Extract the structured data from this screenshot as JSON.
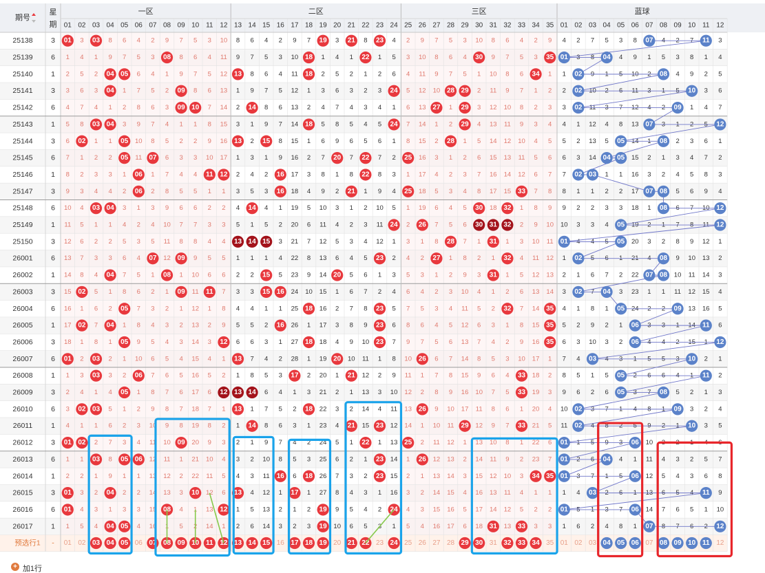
{
  "chart_data": {
    "type": "table",
    "header": {
      "issue_label": "期号",
      "week_label": "星期",
      "zones": [
        "一区",
        "二区",
        "三区",
        "蓝球"
      ],
      "red_columns": [
        "01",
        "02",
        "03",
        "04",
        "05",
        "06",
        "07",
        "08",
        "09",
        "10",
        "11",
        "12",
        "13",
        "14",
        "15",
        "16",
        "17",
        "18",
        "19",
        "20",
        "21",
        "22",
        "23",
        "24",
        "25",
        "26",
        "27",
        "28",
        "29",
        "30",
        "31",
        "32",
        "33",
        "34",
        "35"
      ],
      "blue_columns": [
        "01",
        "02",
        "03",
        "04",
        "05",
        "06",
        "07",
        "08",
        "09",
        "10",
        "11",
        "12"
      ]
    },
    "rows": [
      {
        "issue": "25138",
        "week": "3",
        "reds": [
          "01",
          "03",
          "19",
          "21",
          "23"
        ],
        "blues": [
          "07",
          "11"
        ]
      },
      {
        "issue": "25139",
        "week": "6",
        "reds": [
          "08",
          "18",
          "22",
          "30",
          "35"
        ],
        "blues": [
          "01",
          "04"
        ]
      },
      {
        "issue": "25140",
        "week": "1",
        "reds": [
          "04",
          "05",
          "13",
          "18",
          "34"
        ],
        "blues": [
          "02",
          "08"
        ]
      },
      {
        "issue": "25141",
        "week": "3",
        "reds": [
          "04",
          "09",
          "24",
          "28",
          "29"
        ],
        "blues": [
          "02",
          "10"
        ]
      },
      {
        "issue": "25142",
        "week": "6",
        "reds": [
          "09",
          "10",
          "14",
          "27",
          "29"
        ],
        "blues": [
          "02",
          "09"
        ]
      },
      {
        "issue": "25143",
        "week": "1",
        "reds": [
          "03",
          "04",
          "18",
          "24",
          "29"
        ],
        "blues": [
          "07",
          "12"
        ]
      },
      {
        "issue": "25144",
        "week": "3",
        "reds": [
          "02",
          "05",
          "13",
          "15",
          "28"
        ],
        "blues": [
          "05",
          "08"
        ]
      },
      {
        "issue": "25145",
        "week": "6",
        "reds": [
          "05",
          "07",
          "20",
          "22",
          "25"
        ],
        "blues": [
          "04",
          "05"
        ]
      },
      {
        "issue": "25146",
        "week": "1",
        "reds": [
          "06",
          "11",
          "12",
          "16",
          "22"
        ],
        "blues": [
          "02",
          "03"
        ]
      },
      {
        "issue": "25147",
        "week": "3",
        "reds": [
          "06",
          "16",
          "21",
          "25",
          "33"
        ],
        "blues": [
          "07",
          "08"
        ]
      },
      {
        "issue": "25148",
        "week": "6",
        "reds": [
          "03",
          "04",
          "14",
          "30",
          "32"
        ],
        "blues": [
          "08",
          "12"
        ]
      },
      {
        "issue": "25149",
        "week": "1",
        "reds": [
          "24",
          "26",
          "30",
          "31",
          "32"
        ],
        "blues": [
          "05",
          "12"
        ]
      },
      {
        "issue": "25150",
        "week": "3",
        "reds": [
          "13",
          "14",
          "15",
          "28",
          "31"
        ],
        "blues": [
          "01",
          "05"
        ]
      },
      {
        "issue": "26001",
        "week": "6",
        "reds": [
          "07",
          "09",
          "23",
          "27",
          "32"
        ],
        "blues": [
          "02",
          "08"
        ]
      },
      {
        "issue": "26002",
        "week": "1",
        "reds": [
          "04",
          "08",
          "15",
          "20",
          "31"
        ],
        "blues": [
          "07",
          "08"
        ]
      },
      {
        "issue": "26003",
        "week": "3",
        "reds": [
          "02",
          "09",
          "11",
          "15",
          "16"
        ],
        "blues": [
          "02",
          "04"
        ]
      },
      {
        "issue": "26004",
        "week": "6",
        "reds": [
          "05",
          "18",
          "23",
          "32",
          "35"
        ],
        "blues": [
          "05",
          "09"
        ]
      },
      {
        "issue": "26005",
        "week": "1",
        "reds": [
          "02",
          "04",
          "16",
          "23",
          "35"
        ],
        "blues": [
          "06",
          "11"
        ]
      },
      {
        "issue": "26006",
        "week": "3",
        "reds": [
          "05",
          "12",
          "18",
          "23",
          "35"
        ],
        "blues": [
          "06",
          "12"
        ]
      },
      {
        "issue": "26007",
        "week": "6",
        "reds": [
          "01",
          "03",
          "13",
          "20",
          "26"
        ],
        "blues": [
          "03",
          "10"
        ]
      },
      {
        "issue": "26008",
        "week": "1",
        "reds": [
          "03",
          "06",
          "17",
          "21",
          "33"
        ],
        "blues": [
          "05",
          "11"
        ]
      },
      {
        "issue": "26009",
        "week": "3",
        "reds": [
          "05",
          "12",
          "13",
          "14",
          "33"
        ],
        "blues": [
          "05",
          "08"
        ]
      },
      {
        "issue": "26010",
        "week": "6",
        "reds": [
          "02",
          "03",
          "13",
          "18",
          "26"
        ],
        "blues": [
          "02",
          "09"
        ]
      },
      {
        "issue": "26011",
        "week": "1",
        "reds": [
          "14",
          "21",
          "23",
          "29",
          "33"
        ],
        "blues": [
          "02",
          "10"
        ]
      },
      {
        "issue": "26012",
        "week": "3",
        "reds": [
          "01",
          "02",
          "09",
          "22",
          "25"
        ],
        "blues": [
          "01",
          "06"
        ]
      },
      {
        "issue": "26013",
        "week": "6",
        "reds": [
          "03",
          "05",
          "06",
          "23",
          "26"
        ],
        "blues": [
          "01",
          "04"
        ]
      },
      {
        "issue": "26014",
        "week": "1",
        "reds": [
          "16",
          "18",
          "23",
          "34",
          "35"
        ],
        "blues": [
          "01",
          "06"
        ]
      },
      {
        "issue": "26015",
        "week": "3",
        "reds": [
          "01",
          "04",
          "10",
          "13",
          "17"
        ],
        "blues": [
          "03",
          "11"
        ]
      },
      {
        "issue": "26016",
        "week": "6",
        "reds": [
          "01",
          "08",
          "12",
          "19",
          "24"
        ],
        "blues": [
          "01",
          "06"
        ]
      },
      {
        "issue": "26017",
        "week": "1",
        "reds": [
          "04",
          "05",
          "19",
          "31",
          "33"
        ],
        "blues": [
          "07",
          "12"
        ]
      }
    ],
    "footer_label": "预选行1",
    "footer_week": "-",
    "preselect_reds": [
      "03",
      "04",
      "05",
      "07",
      "08",
      "09",
      "10",
      "11",
      "12",
      "13",
      "14",
      "15",
      "17",
      "18",
      "19",
      "21",
      "22",
      "24",
      "29",
      "30",
      "32",
      "33",
      "34"
    ],
    "preselect_blues": [
      "04",
      "05",
      "06",
      "08",
      "09",
      "10",
      "11"
    ],
    "add_row_label": "加1行",
    "colors": {
      "red_ball": "#e8383d",
      "dark_red_ball": "#a3131b",
      "blue_ball": "#5b82c9",
      "miss_red_text": "#e07a6e",
      "miss_text": "#333333",
      "header_bg": "#eef0f4",
      "stripe": "#f6f6f6",
      "zone_tint": "#fdeeee",
      "blue_box": "#1aa3ea",
      "red_box": "#e8262b",
      "line": "#6f76c9"
    }
  }
}
